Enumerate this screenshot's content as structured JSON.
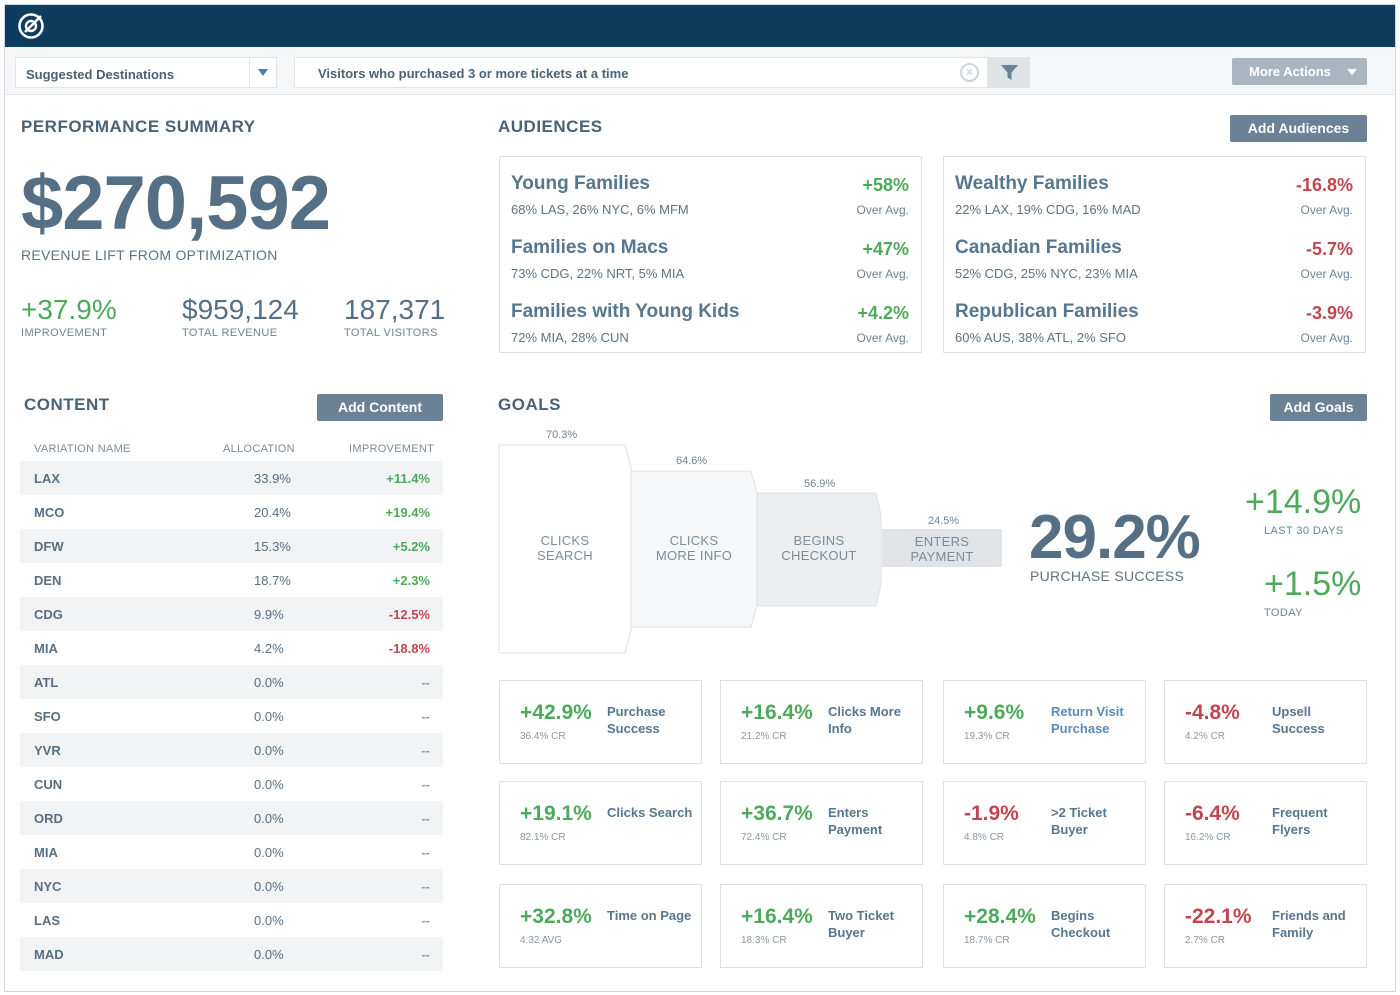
{
  "header": {
    "logo_icon": "brand-logo-icon"
  },
  "toolbar": {
    "dropdown_value": "Suggested Destinations",
    "search_value": "Visitors who purchased 3 or more tickets at a time",
    "more_actions": "More Actions"
  },
  "performance": {
    "title": "PERFORMANCE SUMMARY",
    "revenue_lift": "$270,592",
    "revenue_lift_label": "REVENUE LIFT FROM OPTIMIZATION",
    "improvement": "+37.9%",
    "improvement_label": "IMPROVEMENT",
    "total_revenue": "$959,124",
    "total_revenue_label": "TOTAL REVENUE",
    "total_visitors": "187,371",
    "total_visitors_label": "TOTAL VISITORS"
  },
  "audiences": {
    "title": "AUDIENCES",
    "add_button": "Add Audiences",
    "left": [
      {
        "name": "Young Families",
        "desc": "68% LAS, 26% NYC, 6% MFM",
        "pct": "+58%",
        "over": "Over Avg."
      },
      {
        "name": "Families on Macs",
        "desc": "73% CDG, 22% NRT, 5% MIA",
        "pct": "+47%",
        "over": "Over Avg."
      },
      {
        "name": "Families with Young Kids",
        "desc": "72% MIA, 28% CUN",
        "pct": "+4.2%",
        "over": "Over Avg."
      }
    ],
    "right": [
      {
        "name": "Wealthy Families",
        "desc": "22% LAX, 19% CDG, 16% MAD",
        "pct": "-16.8%",
        "over": "Over Avg."
      },
      {
        "name": "Canadian Families",
        "desc": "52% CDG, 25% NYC, 23% MIA",
        "pct": "-5.7%",
        "over": "Over Avg."
      },
      {
        "name": "Republican Families",
        "desc": "60% AUS, 38% ATL, 2% SFO",
        "pct": "-3.9%",
        "over": "Over Avg."
      }
    ]
  },
  "content": {
    "title": "CONTENT",
    "add_button": "Add Content",
    "headers": [
      "VARIATION NAME",
      "ALLOCATION",
      "IMPROVEMENT"
    ],
    "rows": [
      {
        "name": "LAX",
        "alloc": "33.9%",
        "imp": "+11.4%",
        "tone": "green"
      },
      {
        "name": "MCO",
        "alloc": "20.4%",
        "imp": "+19.4%",
        "tone": "green"
      },
      {
        "name": "DFW",
        "alloc": "15.3%",
        "imp": "+5.2%",
        "tone": "green"
      },
      {
        "name": "DEN",
        "alloc": "18.7%",
        "imp": "+2.3%",
        "tone": "green"
      },
      {
        "name": "CDG",
        "alloc": "9.9%",
        "imp": "-12.5%",
        "tone": "red"
      },
      {
        "name": "MIA",
        "alloc": "4.2%",
        "imp": "-18.8%",
        "tone": "red"
      },
      {
        "name": "ATL",
        "alloc": "0.0%",
        "imp": "--",
        "tone": "neutral"
      },
      {
        "name": "SFO",
        "alloc": "0.0%",
        "imp": "--",
        "tone": "neutral"
      },
      {
        "name": "YVR",
        "alloc": "0.0%",
        "imp": "--",
        "tone": "neutral"
      },
      {
        "name": "CUN",
        "alloc": "0.0%",
        "imp": "--",
        "tone": "neutral"
      },
      {
        "name": "ORD",
        "alloc": "0.0%",
        "imp": "--",
        "tone": "neutral"
      },
      {
        "name": "MIA",
        "alloc": "0.0%",
        "imp": "--",
        "tone": "neutral"
      },
      {
        "name": "NYC",
        "alloc": "0.0%",
        "imp": "--",
        "tone": "neutral"
      },
      {
        "name": "LAS",
        "alloc": "0.0%",
        "imp": "--",
        "tone": "neutral"
      },
      {
        "name": "MAD",
        "alloc": "0.0%",
        "imp": "--",
        "tone": "neutral"
      }
    ]
  },
  "goals": {
    "title": "GOALS",
    "add_button": "Add Goals",
    "funnel": [
      {
        "pct": "70.3%",
        "label1": "CLICKS",
        "label2": "SEARCH"
      },
      {
        "pct": "64.6%",
        "label1": "CLICKS",
        "label2": "MORE INFO"
      },
      {
        "pct": "56.9%",
        "label1": "BEGINS",
        "label2": "CHECKOUT"
      },
      {
        "pct": "24.5%",
        "label1": "ENTERS",
        "label2": "PAYMENT"
      }
    ],
    "purchase_success": "29.2%",
    "purchase_success_label": "PURCHASE SUCCESS",
    "last30": "+14.9%",
    "last30_label": "LAST 30 DAYS",
    "today": "+1.5%",
    "today_label": "TODAY",
    "cards": [
      {
        "value": "+42.9%",
        "sub": "36.4% CR",
        "name": "Purchase Success",
        "tone": "green",
        "blue": false
      },
      {
        "value": "+16.4%",
        "sub": "21.2% CR",
        "name": "Clicks More Info",
        "tone": "green",
        "blue": false
      },
      {
        "value": "+9.6%",
        "sub": "19.3% CR",
        "name": "Return Visit Purchase",
        "tone": "green",
        "blue": true
      },
      {
        "value": "-4.8%",
        "sub": "4.2% CR",
        "name": "Upsell Success",
        "tone": "red",
        "blue": false
      },
      {
        "value": "+19.1%",
        "sub": "82.1% CR",
        "name": "Clicks Search",
        "tone": "green",
        "blue": false
      },
      {
        "value": "+36.7%",
        "sub": "72.4% CR",
        "name": "Enters Payment",
        "tone": "green",
        "blue": false
      },
      {
        "value": "-1.9%",
        "sub": "4.8% CR",
        "name": ">2 Ticket Buyer",
        "tone": "red",
        "blue": false
      },
      {
        "value": "-6.4%",
        "sub": "16.2% CR",
        "name": "Frequent Flyers",
        "tone": "red",
        "blue": false
      },
      {
        "value": "+32.8%",
        "sub": "4:32 AVG",
        "name": "Time on Page",
        "tone": "green",
        "blue": false
      },
      {
        "value": "+16.4%",
        "sub": "18.3% CR",
        "name": "Two Ticket Buyer",
        "tone": "green",
        "blue": false
      },
      {
        "value": "+28.4%",
        "sub": "18.7% CR",
        "name": "Begins Checkout",
        "tone": "green",
        "blue": false
      },
      {
        "value": "-22.1%",
        "sub": "2.7% CR",
        "name": "Friends and Family",
        "tone": "red",
        "blue": false
      }
    ]
  },
  "colors": {
    "topbar": "#0e3c5f",
    "positive": "#4daa5b",
    "negative": "#c0464f",
    "button": "#6b8296"
  }
}
